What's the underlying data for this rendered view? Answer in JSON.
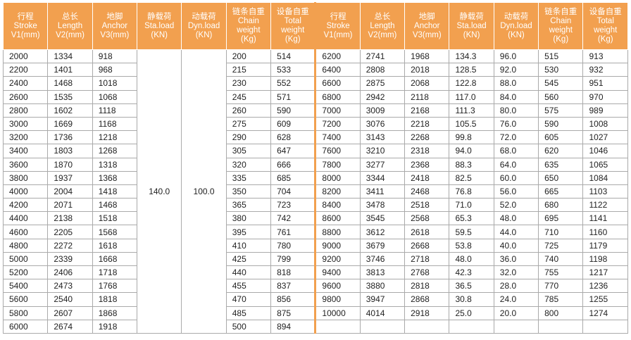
{
  "table": {
    "headers": [
      [
        "行程",
        "Stroke",
        "V1(mm)"
      ],
      [
        "总长",
        "Length",
        "V2(mm)"
      ],
      [
        "地脚",
        "Anchor",
        "V3(mm)"
      ],
      [
        "静载荷",
        "Sta.load",
        "(KN)"
      ],
      [
        "动载荷",
        "Dyn.load",
        "(KN)"
      ],
      [
        "链条自重",
        "Chain",
        "weight",
        "(Kg)"
      ],
      [
        "设备自重",
        "Total",
        "weight",
        "(Kg)"
      ],
      [
        "行程",
        "Stroke",
        "V1(mm)"
      ],
      [
        "总长",
        "Length",
        "V2(mm)"
      ],
      [
        "地脚",
        "Anchor",
        "V3(mm)"
      ],
      [
        "静载荷",
        "Sta.load",
        "(KN)"
      ],
      [
        "动载荷",
        "Dyn.load",
        "(KN)"
      ],
      [
        "链条自重",
        "Chain",
        "weight",
        "(Kg)"
      ],
      [
        "设备自重",
        "Total",
        "weight",
        "(Kg)"
      ]
    ],
    "left_rows": [
      [
        "2000",
        "1334",
        "918",
        "200",
        "514"
      ],
      [
        "2200",
        "1401",
        "968",
        "215",
        "533"
      ],
      [
        "2400",
        "1468",
        "1018",
        "230",
        "552"
      ],
      [
        "2600",
        "1535",
        "1068",
        "245",
        "571"
      ],
      [
        "2800",
        "1602",
        "1118",
        "260",
        "590"
      ],
      [
        "3000",
        "1669",
        "1168",
        "275",
        "609"
      ],
      [
        "3200",
        "1736",
        "1218",
        "290",
        "628"
      ],
      [
        "3400",
        "1803",
        "1268",
        "305",
        "647"
      ],
      [
        "3600",
        "1870",
        "1318",
        "320",
        "666"
      ],
      [
        "3800",
        "1937",
        "1368",
        "335",
        "685"
      ],
      [
        "4000",
        "2004",
        "1418",
        "350",
        "704"
      ],
      [
        "4200",
        "2071",
        "1468",
        "365",
        "723"
      ],
      [
        "4400",
        "2138",
        "1518",
        "380",
        "742"
      ],
      [
        "4600",
        "2205",
        "1568",
        "395",
        "761"
      ],
      [
        "4800",
        "2272",
        "1618",
        "410",
        "780"
      ],
      [
        "5000",
        "2339",
        "1668",
        "425",
        "799"
      ],
      [
        "5200",
        "2406",
        "1718",
        "440",
        "818"
      ],
      [
        "5400",
        "2473",
        "1768",
        "455",
        "837"
      ],
      [
        "5600",
        "2540",
        "1818",
        "470",
        "856"
      ],
      [
        "5800",
        "2607",
        "1868",
        "485",
        "875"
      ],
      [
        "6000",
        "2674",
        "1918",
        "500",
        "894"
      ]
    ],
    "static_load": "140.0",
    "dynamic_load": "100.0",
    "right_rows": [
      [
        "6200",
        "2741",
        "1968",
        "134.3",
        "96.0",
        "515",
        "913"
      ],
      [
        "6400",
        "2808",
        "2018",
        "128.5",
        "92.0",
        "530",
        "932"
      ],
      [
        "6600",
        "2875",
        "2068",
        "122.8",
        "88.0",
        "545",
        "951"
      ],
      [
        "6800",
        "2942",
        "2118",
        "117.0",
        "84.0",
        "560",
        "970"
      ],
      [
        "7000",
        "3009",
        "2168",
        "111.3",
        "80.0",
        "575",
        "989"
      ],
      [
        "7200",
        "3076",
        "2218",
        "105.5",
        "76.0",
        "590",
        "1008"
      ],
      [
        "7400",
        "3143",
        "2268",
        "99.8",
        "72.0",
        "605",
        "1027"
      ],
      [
        "7600",
        "3210",
        "2318",
        "94.0",
        "68.0",
        "620",
        "1046"
      ],
      [
        "7800",
        "3277",
        "2368",
        "88.3",
        "64.0",
        "635",
        "1065"
      ],
      [
        "8000",
        "3344",
        "2418",
        "82.5",
        "60.0",
        "650",
        "1084"
      ],
      [
        "8200",
        "3411",
        "2468",
        "76.8",
        "56.0",
        "665",
        "1103"
      ],
      [
        "8400",
        "3478",
        "2518",
        "71.0",
        "52.0",
        "680",
        "1122"
      ],
      [
        "8600",
        "3545",
        "2568",
        "65.3",
        "48.0",
        "695",
        "1141"
      ],
      [
        "8800",
        "3612",
        "2618",
        "59.5",
        "44.0",
        "710",
        "1160"
      ],
      [
        "9000",
        "3679",
        "2668",
        "53.8",
        "40.0",
        "725",
        "1179"
      ],
      [
        "9200",
        "3746",
        "2718",
        "48.0",
        "36.0",
        "740",
        "1198"
      ],
      [
        "9400",
        "3813",
        "2768",
        "42.3",
        "32.0",
        "755",
        "1217"
      ],
      [
        "9600",
        "3880",
        "2818",
        "36.5",
        "28.0",
        "770",
        "1236"
      ],
      [
        "9800",
        "3947",
        "2868",
        "30.8",
        "24.0",
        "785",
        "1255"
      ],
      [
        "10000",
        "4014",
        "2918",
        "25.0",
        "20.0",
        "800",
        "1274"
      ]
    ]
  }
}
